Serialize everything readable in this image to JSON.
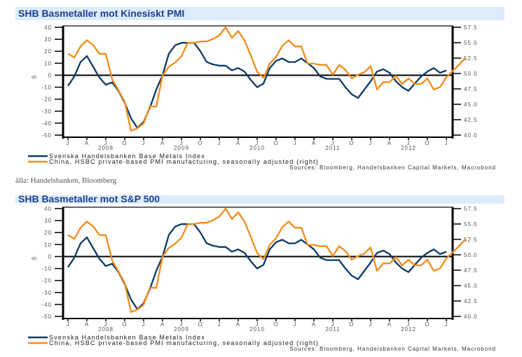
{
  "source_note": "älla: Handelsbanken, Bloomberg",
  "colors": {
    "blue": "#0b3a66",
    "orange": "#f28c1a",
    "title_bg": "#dcecfb",
    "title_fg": "#1f3f8f"
  },
  "chart_data": [
    {
      "type": "line",
      "title": "SHB Basmetaller mot Kinesiskt PMI",
      "ylabel": "%",
      "ylim": [
        -50,
        40
      ],
      "y2lim": [
        40.0,
        57.5
      ],
      "yticks": [
        "40",
        "30",
        "20",
        "10",
        "0",
        "-10",
        "-20",
        "-30",
        "-40",
        "-50"
      ],
      "y2ticks": [
        "57.5",
        "55.0",
        "52.5",
        "50.0",
        "47.5",
        "45.0",
        "42.5",
        "40.0"
      ],
      "xticks": [
        "J",
        "A",
        "J",
        "O",
        "J",
        "A",
        "J",
        "O",
        "J",
        "A",
        "J",
        "O",
        "J",
        "A",
        "J",
        "O",
        "J",
        "A",
        "J",
        "O",
        "J"
      ],
      "year_labels": [
        "2008",
        "2009",
        "2010",
        "2011",
        "2012"
      ],
      "x_start": "2008-01",
      "x_step": "month",
      "grid": false,
      "legend_position": "bottom-left",
      "series": [
        {
          "name": "Svenska Handelsbanken Base Metals Index",
          "axis": "left",
          "color": "#0b3a66",
          "values": [
            -9,
            -1,
            11,
            16,
            7,
            -2,
            -8,
            -6,
            -13,
            -23,
            -36,
            -44,
            -39,
            -27,
            -12,
            0,
            18,
            25,
            27,
            27,
            27,
            20,
            11,
            9,
            8,
            8,
            4,
            6,
            3,
            -4,
            -10,
            -7,
            6,
            12,
            14,
            11,
            11,
            14,
            10,
            6,
            -1,
            -3,
            -3,
            -3,
            -10,
            -16,
            -19,
            -12,
            -5,
            3,
            5,
            2,
            -5,
            -10,
            -13,
            -7,
            -1,
            3,
            6,
            2,
            4
          ]
        },
        {
          "name": "China, HSBC private-based PMI manufacturing, seasonally adjusted (right)",
          "axis": "right",
          "color": "#f28c1a",
          "values": [
            53.2,
            52.6,
            54.4,
            55.4,
            54.6,
            53.2,
            53.2,
            49.1,
            47.3,
            45.4,
            40.7,
            41.1,
            41.9,
            44.7,
            44.6,
            49.7,
            51.1,
            51.8,
            52.8,
            55.0,
            55.0,
            55.2,
            55.2,
            55.6,
            56.2,
            57.5,
            55.8,
            56.9,
            55.4,
            52.9,
            50.3,
            49.3,
            51.6,
            52.7,
            54.5,
            55.4,
            54.4,
            54.4,
            51.6,
            51.6,
            51.4,
            51.4,
            49.8,
            51.4,
            50.6,
            49.2,
            49.8,
            50.2,
            51.2,
            47.4,
            48.6,
            48.6,
            49.6,
            48.3,
            49.2,
            48.3,
            48.3,
            49.2,
            47.4,
            47.8,
            49.4,
            50.4,
            51.4,
            52.5
          ]
        }
      ],
      "sources": "Sources: Bloomberg, Handelsbanken Capital Markets, Macrobond"
    },
    {
      "type": "line",
      "title": "SHB Basmetaller mot S&P 500",
      "ylabel": "%",
      "ylim": [
        -50,
        40
      ],
      "y2lim": [
        40.0,
        57.5
      ],
      "yticks": [
        "40",
        "30",
        "20",
        "10",
        "0",
        "-10",
        "-20",
        "-30",
        "-40",
        "-50"
      ],
      "y2ticks": [
        "57.5",
        "55.0",
        "52.5",
        "50.0",
        "47.5",
        "45.0",
        "42.5",
        "40.0"
      ],
      "xticks": [
        "J",
        "A",
        "J",
        "O",
        "J",
        "A",
        "J",
        "O",
        "J",
        "A",
        "J",
        "O",
        "J",
        "A",
        "J",
        "O",
        "J",
        "A",
        "J",
        "O",
        "J"
      ],
      "year_labels": [
        "2008",
        "2009",
        "2010",
        "2011",
        "2012"
      ],
      "x_start": "2008-01",
      "x_step": "month",
      "grid": false,
      "legend_position": "bottom-left",
      "series": [
        {
          "name": "Svenska Handelsbanken Base Metals Index",
          "axis": "left",
          "color": "#0b3a66",
          "values": [
            -9,
            -1,
            11,
            16,
            7,
            -2,
            -8,
            -6,
            -13,
            -23,
            -36,
            -44,
            -39,
            -27,
            -12,
            0,
            18,
            25,
            27,
            27,
            27,
            20,
            11,
            9,
            8,
            8,
            4,
            6,
            3,
            -4,
            -10,
            -7,
            6,
            12,
            14,
            11,
            11,
            14,
            10,
            6,
            -1,
            -3,
            -3,
            -3,
            -10,
            -16,
            -19,
            -12,
            -5,
            3,
            5,
            2,
            -5,
            -10,
            -13,
            -7,
            -1,
            3,
            6,
            2,
            4
          ]
        },
        {
          "name": "China, HSBC private-based PMI manufacturing, seasonally adjusted (right)",
          "axis": "right",
          "color": "#f28c1a",
          "values": [
            53.2,
            52.6,
            54.4,
            55.4,
            54.6,
            53.2,
            53.2,
            49.1,
            47.3,
            45.4,
            40.7,
            41.1,
            41.9,
            44.7,
            44.6,
            49.7,
            51.1,
            51.8,
            52.8,
            55.0,
            55.0,
            55.2,
            55.2,
            55.6,
            56.2,
            57.5,
            55.8,
            56.9,
            55.4,
            52.9,
            50.3,
            49.3,
            51.6,
            52.7,
            54.5,
            55.4,
            54.4,
            54.4,
            51.6,
            51.6,
            51.4,
            51.4,
            49.8,
            51.4,
            50.6,
            49.2,
            49.8,
            50.2,
            51.2,
            47.4,
            48.6,
            48.6,
            49.6,
            48.3,
            49.2,
            48.3,
            48.3,
            49.2,
            47.4,
            47.8,
            49.4,
            50.4,
            51.4,
            52.5
          ]
        }
      ],
      "sources": "Sources: Bloomberg, Handelsbanken Capital Markets, Macrobond"
    }
  ]
}
